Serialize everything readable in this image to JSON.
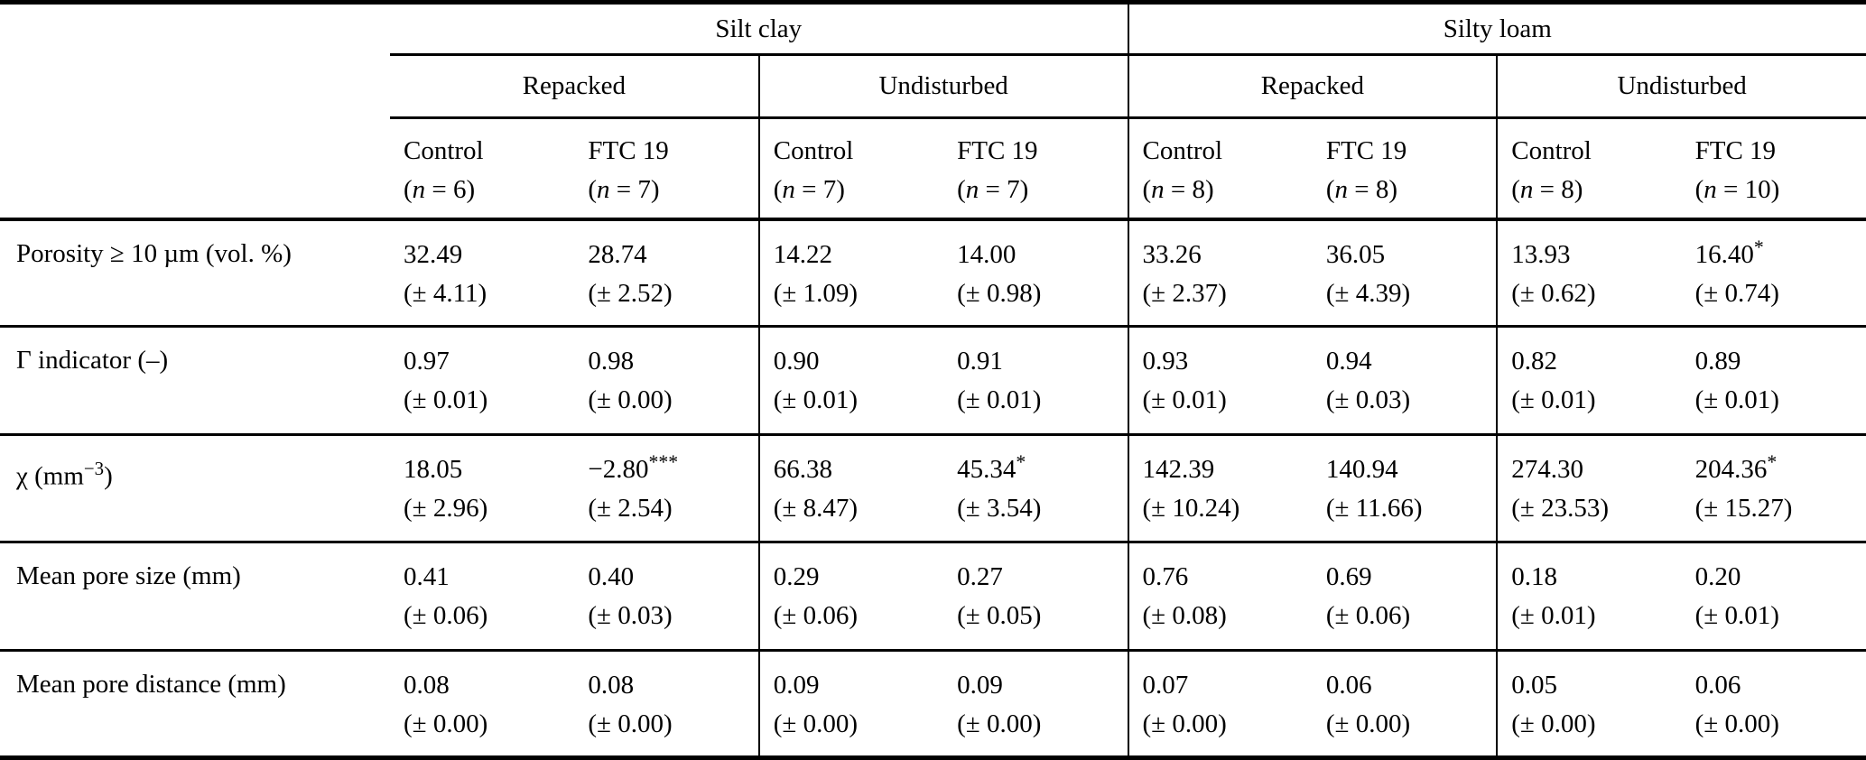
{
  "table": {
    "soil_groups": [
      {
        "label": "Silt clay"
      },
      {
        "label": "Silty loam"
      }
    ],
    "treatment_groups": [
      {
        "label": "Repacked"
      },
      {
        "label": "Undisturbed"
      },
      {
        "label": "Repacked"
      },
      {
        "label": "Undisturbed"
      }
    ],
    "columns": [
      {
        "name": "Control",
        "n_pre": "(",
        "n_var": "n",
        "n_post": " = 6)"
      },
      {
        "name": "FTC 19",
        "n_pre": "(",
        "n_var": "n",
        "n_post": " = 7)"
      },
      {
        "name": "Control",
        "n_pre": "(",
        "n_var": "n",
        "n_post": " = 7)"
      },
      {
        "name": "FTC 19",
        "n_pre": "(",
        "n_var": "n",
        "n_post": " = 7)"
      },
      {
        "name": "Control",
        "n_pre": "(",
        "n_var": "n",
        "n_post": " = 8)"
      },
      {
        "name": "FTC 19",
        "n_pre": "(",
        "n_var": "n",
        "n_post": " = 8)"
      },
      {
        "name": "Control",
        "n_pre": "(",
        "n_var": "n",
        "n_post": " = 8)"
      },
      {
        "name": "FTC 19",
        "n_pre": "(",
        "n_var": "n",
        "n_post": " = 10)"
      }
    ],
    "rows": [
      {
        "label": "Porosity ≥ 10 µm (vol. %)",
        "cells": [
          {
            "v": "32.49",
            "sd": "(± 4.11)"
          },
          {
            "v": "28.74",
            "sd": "(± 2.52)"
          },
          {
            "v": "14.22",
            "sd": "(± 1.09)"
          },
          {
            "v": "14.00",
            "sd": "(± 0.98)"
          },
          {
            "v": "33.26",
            "sd": "(± 2.37)"
          },
          {
            "v": "36.05",
            "sd": "(± 4.39)"
          },
          {
            "v": "13.93",
            "sd": "(± 0.62)"
          },
          {
            "v": "16.40",
            "stars": "*",
            "sd": "(± 0.74)"
          }
        ]
      },
      {
        "label": "Γ indicator (–)",
        "cells": [
          {
            "v": "0.97",
            "sd": "(± 0.01)"
          },
          {
            "v": "0.98",
            "sd": "(± 0.00)"
          },
          {
            "v": "0.90",
            "sd": "(± 0.01)"
          },
          {
            "v": "0.91",
            "sd": "(± 0.01)"
          },
          {
            "v": "0.93",
            "sd": "(± 0.01)"
          },
          {
            "v": "0.94",
            "sd": "(± 0.03)"
          },
          {
            "v": "0.82",
            "sd": "(± 0.01)"
          },
          {
            "v": "0.89",
            "sd": "(± 0.01)"
          }
        ]
      },
      {
        "label": "χ (mm",
        "label_sup": "−3",
        "label_end": ")",
        "cells": [
          {
            "v": "18.05",
            "sd": "(± 2.96)"
          },
          {
            "v": "−2.80",
            "stars": "***",
            "sd": "(± 2.54)"
          },
          {
            "v": "66.38",
            "sd": "(± 8.47)"
          },
          {
            "v": "45.34",
            "stars": "*",
            "sd": "(± 3.54)"
          },
          {
            "v": "142.39",
            "sd": "(± 10.24)"
          },
          {
            "v": "140.94",
            "sd": "(± 11.66)"
          },
          {
            "v": "274.30",
            "sd": "(± 23.53)"
          },
          {
            "v": "204.36",
            "stars": "*",
            "sd": "(± 15.27)"
          }
        ]
      },
      {
        "label": "Mean pore size (mm)",
        "cells": [
          {
            "v": "0.41",
            "sd": "(± 0.06)"
          },
          {
            "v": "0.40",
            "sd": "(± 0.03)"
          },
          {
            "v": "0.29",
            "sd": "(± 0.06)"
          },
          {
            "v": "0.27",
            "sd": "(± 0.05)"
          },
          {
            "v": "0.76",
            "sd": "(± 0.08)"
          },
          {
            "v": "0.69",
            "sd": "(± 0.06)"
          },
          {
            "v": "0.18",
            "sd": "(± 0.01)"
          },
          {
            "v": "0.20",
            "sd": "(± 0.01)"
          }
        ]
      },
      {
        "label": "Mean pore distance (mm)",
        "cells": [
          {
            "v": "0.08",
            "sd": "(± 0.00)"
          },
          {
            "v": "0.08",
            "sd": "(± 0.00)"
          },
          {
            "v": "0.09",
            "sd": "(± 0.00)"
          },
          {
            "v": "0.09",
            "sd": "(± 0.00)"
          },
          {
            "v": "0.07",
            "sd": "(± 0.00)"
          },
          {
            "v": "0.06",
            "sd": "(± 0.00)"
          },
          {
            "v": "0.05",
            "sd": "(± 0.00)"
          },
          {
            "v": "0.06",
            "sd": "(± 0.00)"
          }
        ]
      }
    ]
  },
  "colors": {
    "text": "#000000",
    "rule": "#000000",
    "background": "#ffffff"
  }
}
